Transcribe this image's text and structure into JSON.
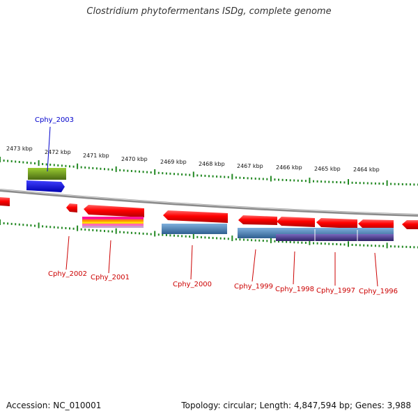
{
  "title": "Clostridium phytofermentans ISDg, complete genome",
  "footer": {
    "accession": "Accession: NC_010001",
    "summary": "Topology: circular; Length: 4,847,594 bp; Genes: 3,988"
  },
  "colors": {
    "backbone": "#8a8a8a",
    "gene_forward": "#ff0000",
    "gene_reverse": "#ff0000",
    "label_blue": "#0000cc",
    "label_red": "#cc0000",
    "tick": "#228822",
    "cog_green": "#6b8e23",
    "cog_blue": "#0000ff",
    "cog_steel": "#4a7fb5",
    "cog_purple": "#4b3a8c",
    "cog_multi": [
      "#ff1493",
      "#ff8c00",
      "#ffd700",
      "#ff69b4"
    ]
  },
  "ruler_labels": [
    "2473 kbp",
    "2472 kbp",
    "2471 kbp",
    "2470 kbp",
    "2469 kbp",
    "2468 kbp",
    "2467 kbp",
    "2466 kbp",
    "2465 kbp",
    "2464 kbp"
  ],
  "gene_labels": [
    {
      "name": "Cphy_2003",
      "color": "blue"
    },
    {
      "name": "Cphy_2002",
      "color": "red"
    },
    {
      "name": "Cphy_2001",
      "color": "red"
    },
    {
      "name": "Cphy_2000",
      "color": "red"
    },
    {
      "name": "Cphy_1999",
      "color": "red"
    },
    {
      "name": "Cphy_1998",
      "color": "red"
    },
    {
      "name": "Cphy_1997",
      "color": "red"
    },
    {
      "name": "Cphy_1996",
      "color": "red"
    }
  ]
}
